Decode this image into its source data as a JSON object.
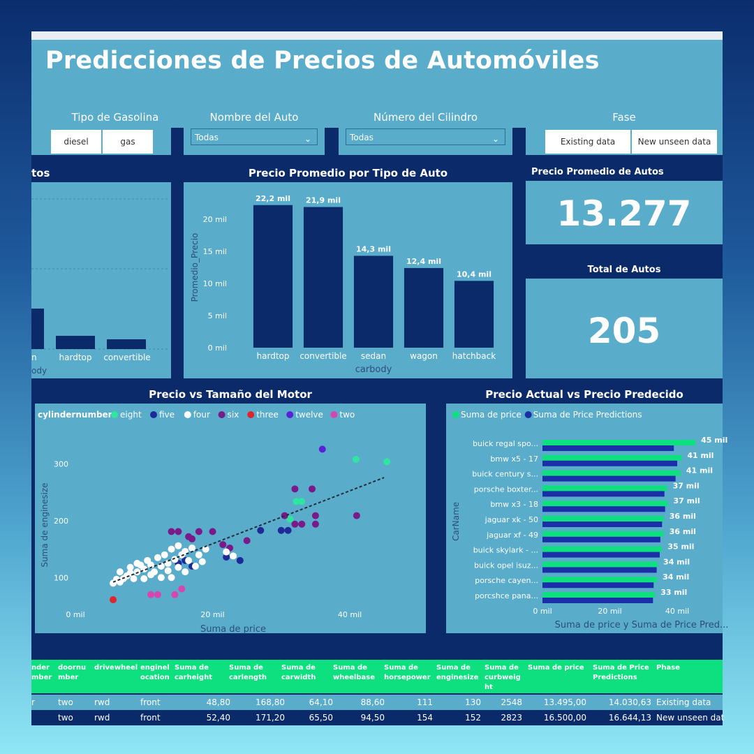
{
  "title": "Predicciones de Precios de Automóviles",
  "colors": {
    "navy": "#0b2a6a",
    "panel": "#5aaccb",
    "green": "#0fe07f",
    "blue": "#1a2fa8"
  },
  "slicers": {
    "fuel": {
      "title": "Tipo de Gasolina",
      "options": [
        "diesel",
        "gas"
      ]
    },
    "car_name": {
      "title": "Nombre del Auto",
      "value": "Todas"
    },
    "cylinders": {
      "title": "Número del Cilindro",
      "value": "Todas"
    },
    "phase": {
      "title": "Fase",
      "options": [
        "Existing data",
        "New unseen data"
      ]
    }
  },
  "left_chart": {
    "title_fragment": "tos",
    "xlabel_fragment": "ody",
    "labels": [
      "n",
      "hardtop",
      "convertible"
    ]
  },
  "kpi_avg": {
    "title": "Precio Promedio de Autos",
    "value": "13.277"
  },
  "kpi_total": {
    "title": "Total de Autos",
    "value": "205"
  },
  "chart_data": [
    {
      "type": "bar",
      "title": "Precio Promedio por Tipo de Auto",
      "categories": [
        "hardtop",
        "convertible",
        "sedan",
        "wagon",
        "hatchback"
      ],
      "values": [
        22.2,
        21.9,
        14.3,
        12.4,
        10.4
      ],
      "data_labels": [
        "22,2 mil",
        "21,9 mil",
        "14,3 mil",
        "12,4 mil",
        "10,4 mil"
      ],
      "xlabel": "carbody",
      "ylabel": "Promedio_Precio",
      "yticks": [
        0,
        5,
        10,
        15,
        20
      ],
      "ytick_labels": [
        "0 mil",
        "5 mil",
        "10 mil",
        "15 mil",
        "20 mil"
      ],
      "ylim": [
        0,
        25
      ]
    },
    {
      "type": "scatter",
      "title": "Precio vs Tamaño del Motor",
      "xlabel": "Suma de price",
      "ylabel": "Suma de enginesize",
      "legend_title": "cylindernumber",
      "legend": [
        {
          "name": "eight",
          "color": "#2ee6a0"
        },
        {
          "name": "five",
          "color": "#1d2a98"
        },
        {
          "name": "four",
          "color": "#ffffff"
        },
        {
          "name": "six",
          "color": "#7a1a8a"
        },
        {
          "name": "three",
          "color": "#e0242c"
        },
        {
          "name": "twelve",
          "color": "#5a22d6"
        },
        {
          "name": "two",
          "color": "#d646b0"
        }
      ],
      "xticks": [
        0,
        20,
        40
      ],
      "xtick_labels": [
        "0 mil",
        "20 mil",
        "40 mil"
      ],
      "yticks": [
        100,
        200,
        300
      ],
      "ytick_labels": [
        "100",
        "200",
        "300"
      ],
      "xlim": [
        0,
        46
      ],
      "ylim": [
        45,
        340
      ],
      "points": [
        {
          "s": "eight",
          "x": 40.9,
          "y": 308
        },
        {
          "s": "eight",
          "x": 45.4,
          "y": 304
        },
        {
          "s": "eight",
          "x": 32.2,
          "y": 234
        },
        {
          "s": "eight",
          "x": 33.0,
          "y": 234
        },
        {
          "s": "eight",
          "x": 31.3,
          "y": 203
        },
        {
          "s": "five",
          "x": 27.0,
          "y": 183
        },
        {
          "s": "five",
          "x": 30.0,
          "y": 183
        },
        {
          "s": "five",
          "x": 31.0,
          "y": 183
        },
        {
          "s": "five",
          "x": 22.0,
          "y": 136
        },
        {
          "s": "five",
          "x": 24.0,
          "y": 130
        },
        {
          "s": "five",
          "x": 16.0,
          "y": 130
        },
        {
          "s": "five",
          "x": 15.0,
          "y": 125
        },
        {
          "s": "five",
          "x": 17.0,
          "y": 120
        },
        {
          "s": "six",
          "x": 34.5,
          "y": 256
        },
        {
          "s": "six",
          "x": 32.0,
          "y": 256
        },
        {
          "s": "six",
          "x": 30.5,
          "y": 209
        },
        {
          "s": "six",
          "x": 35.0,
          "y": 209
        },
        {
          "s": "six",
          "x": 41.0,
          "y": 209
        },
        {
          "s": "six",
          "x": 35.0,
          "y": 194
        },
        {
          "s": "six",
          "x": 32.0,
          "y": 194
        },
        {
          "s": "six",
          "x": 33.0,
          "y": 194
        },
        {
          "s": "six",
          "x": 14.0,
          "y": 181
        },
        {
          "s": "six",
          "x": 15.0,
          "y": 181
        },
        {
          "s": "six",
          "x": 18.0,
          "y": 181
        },
        {
          "s": "six",
          "x": 20.0,
          "y": 181
        },
        {
          "s": "six",
          "x": 16.5,
          "y": 172
        },
        {
          "s": "six",
          "x": 17.0,
          "y": 168
        },
        {
          "s": "six",
          "x": 21.5,
          "y": 158
        },
        {
          "s": "six",
          "x": 22.5,
          "y": 152
        },
        {
          "s": "six",
          "x": 25.0,
          "y": 165
        },
        {
          "s": "three",
          "x": 5.5,
          "y": 61
        },
        {
          "s": "twelve",
          "x": 36.0,
          "y": 326
        },
        {
          "s": "two",
          "x": 11.0,
          "y": 70
        },
        {
          "s": "two",
          "x": 12.0,
          "y": 70
        },
        {
          "s": "two",
          "x": 14.5,
          "y": 70
        },
        {
          "s": "two",
          "x": 15.5,
          "y": 80
        },
        {
          "s": "four",
          "x": 5.5,
          "y": 90
        },
        {
          "s": "four",
          "x": 6.0,
          "y": 97
        },
        {
          "s": "four",
          "x": 6.5,
          "y": 92
        },
        {
          "s": "four",
          "x": 7.0,
          "y": 98
        },
        {
          "s": "four",
          "x": 7.5,
          "y": 103
        },
        {
          "s": "four",
          "x": 8.0,
          "y": 108
        },
        {
          "s": "four",
          "x": 8.5,
          "y": 98
        },
        {
          "s": "four",
          "x": 9.0,
          "y": 110
        },
        {
          "s": "four",
          "x": 9.5,
          "y": 122
        },
        {
          "s": "four",
          "x": 10.0,
          "y": 115
        },
        {
          "s": "four",
          "x": 10.5,
          "y": 130
        },
        {
          "s": "four",
          "x": 11.0,
          "y": 122
        },
        {
          "s": "four",
          "x": 11.5,
          "y": 110
        },
        {
          "s": "four",
          "x": 12.0,
          "y": 135
        },
        {
          "s": "four",
          "x": 12.5,
          "y": 120
        },
        {
          "s": "four",
          "x": 13.0,
          "y": 140
        },
        {
          "s": "four",
          "x": 13.5,
          "y": 125
        },
        {
          "s": "four",
          "x": 14.0,
          "y": 150
        },
        {
          "s": "four",
          "x": 14.5,
          "y": 132
        },
        {
          "s": "four",
          "x": 15.0,
          "y": 156
        },
        {
          "s": "four",
          "x": 15.5,
          "y": 140
        },
        {
          "s": "four",
          "x": 16.0,
          "y": 146
        },
        {
          "s": "four",
          "x": 16.5,
          "y": 130
        },
        {
          "s": "four",
          "x": 17.0,
          "y": 152
        },
        {
          "s": "four",
          "x": 17.5,
          "y": 120
        },
        {
          "s": "four",
          "x": 18.0,
          "y": 140
        },
        {
          "s": "four",
          "x": 18.5,
          "y": 128
        },
        {
          "s": "four",
          "x": 10.0,
          "y": 98
        },
        {
          "s": "four",
          "x": 11.0,
          "y": 105
        },
        {
          "s": "four",
          "x": 12.5,
          "y": 100
        },
        {
          "s": "four",
          "x": 13.5,
          "y": 112
        },
        {
          "s": "four",
          "x": 9.0,
          "y": 125
        },
        {
          "s": "four",
          "x": 8.0,
          "y": 118
        },
        {
          "s": "four",
          "x": 15.0,
          "y": 118
        },
        {
          "s": "four",
          "x": 16.0,
          "y": 110
        },
        {
          "s": "four",
          "x": 22.0,
          "y": 145
        },
        {
          "s": "four",
          "x": 23.0,
          "y": 138
        },
        {
          "s": "four",
          "x": 6.5,
          "y": 110
        },
        {
          "s": "four",
          "x": 14.0,
          "y": 100
        },
        {
          "s": "four",
          "x": 19.0,
          "y": 150
        }
      ],
      "trendline": {
        "x": [
          5.5,
          45
        ],
        "y": [
          92,
          276
        ]
      }
    },
    {
      "type": "bar",
      "orientation": "horizontal",
      "title": "Precio Actual vs Precio Predecido",
      "categories": [
        "buick regal spo...",
        "bmw x5 - 17",
        "buick century s...",
        "porsche boxter...",
        "bmw x3 - 18",
        "jaguar xk - 50",
        "jaguar xf - 49",
        "buick skylark - ...",
        "buick opel isuz...",
        "porsche cayen...",
        "porcshce pana..."
      ],
      "series": [
        {
          "name": "Suma de price",
          "color": "#0fe07f",
          "values": [
            45.4,
            41.3,
            41.0,
            37.0,
            37.2,
            36.0,
            36.0,
            35.5,
            34.2,
            34.0,
            33.4
          ]
        },
        {
          "name": "Suma de Price Predictions",
          "color": "#1a2fa8",
          "values": [
            39.0,
            40.0,
            39.5,
            36.2,
            36.4,
            35.5,
            35.0,
            34.8,
            33.9,
            33.0,
            32.8
          ]
        }
      ],
      "data_labels": [
        "45 mil",
        "41 mil",
        "41 mil",
        "37 mil",
        "37 mil",
        "36 mil",
        "36 mil",
        "35 mil",
        "34 mil",
        "34 mil",
        "33 mil"
      ],
      "xticks": [
        0,
        20,
        40
      ],
      "xtick_labels": [
        "0 mil",
        "20 mil",
        "40 mil"
      ],
      "xlim": [
        0,
        46
      ],
      "xlabel": "Suma de price y Suma de Price Pred...",
      "ylabel": "CarName"
    }
  ],
  "table": {
    "headers": [
      "nder\nmber",
      "doornu\nmber",
      "drivewheel",
      "enginel\nocation",
      "Suma de\ncarheight",
      "Suma de\ncarlength",
      "Suma de\ncarwidth",
      "Suma de\nwheelbase",
      "Suma de\nhorsepower",
      "Suma de\nenginesize",
      "Suma de\ncurbweig\nht",
      "Suma de price",
      "Suma de Price\nPredictions",
      "Phase"
    ],
    "rows": [
      [
        "r",
        "two",
        "rwd",
        "front",
        "48,80",
        "168,80",
        "64,10",
        "88,60",
        "111",
        "130",
        "2548",
        "13.495,00",
        "14.030,63",
        "Existing data"
      ],
      [
        "",
        "two",
        "rwd",
        "front",
        "52,40",
        "171,20",
        "65,50",
        "94,50",
        "154",
        "152",
        "2823",
        "16.500,00",
        "16.644,13",
        "New unseen dat"
      ]
    ]
  }
}
